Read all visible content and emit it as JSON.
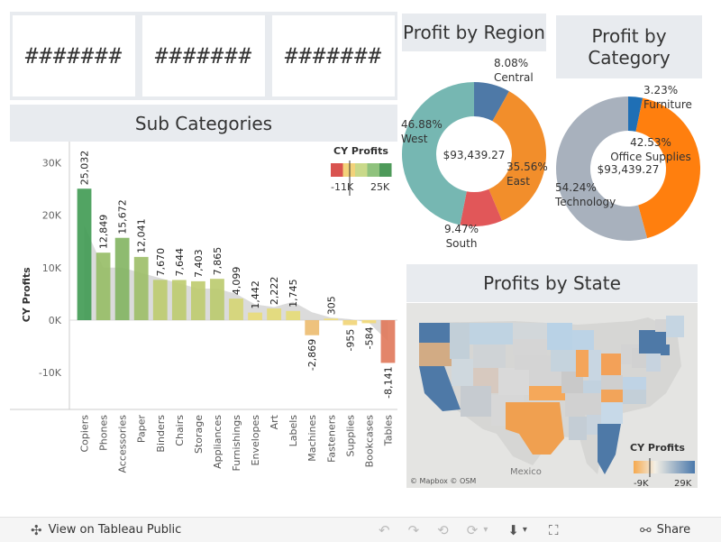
{
  "kpis": [
    "#######",
    "#######",
    "#######"
  ],
  "sub_categories": {
    "title": "Sub Categories",
    "legend": {
      "title": "CY Profits",
      "min": "-11K",
      "max": "25K"
    }
  },
  "profit_by_region": {
    "title": "Profit by Region",
    "center_total": "$93,439.27"
  },
  "profit_by_category": {
    "title": "Profit by Category",
    "center_total": "$93,439.27"
  },
  "profits_by_state": {
    "title": "Profits by State",
    "legend": {
      "title": "CY Profits",
      "min": "-9K",
      "max": "29K"
    },
    "map_labels": {
      "country": "Mexico",
      "attribution": "© Mapbox  © OSM"
    }
  },
  "chart_data": [
    {
      "type": "bar",
      "title": "Sub Categories",
      "ylabel": "CY Profits",
      "categories": [
        "Copiers",
        "Phones",
        "Accessories",
        "Paper",
        "Binders",
        "Chairs",
        "Storage",
        "Appliances",
        "Furnishings",
        "Envelopes",
        "Art",
        "Labels",
        "Machines",
        "Fasteners",
        "Supplies",
        "Bookcases",
        "Tables"
      ],
      "values": [
        25032,
        12849,
        15672,
        12041,
        7670,
        7644,
        7403,
        7865,
        4099,
        1442,
        2222,
        1745,
        -2869,
        305,
        -955,
        -584,
        -8141
      ],
      "value_labels": [
        "25,032",
        "12,849",
        "15,672",
        "12,041",
        "7,670",
        "7,644",
        "7,403",
        "7,865",
        "4,099",
        "1,442",
        "2,222",
        "1,745",
        "-2,869",
        "305",
        "-955",
        "-584",
        "-8,141"
      ],
      "reference_area": [
        18000,
        10000,
        10000,
        9000,
        8000,
        7000,
        6000,
        6000,
        5000,
        3000,
        2500,
        3500,
        1500,
        500,
        200,
        -500,
        -4000
      ],
      "yticks": [
        -10000,
        0,
        10000,
        20000,
        30000
      ],
      "ytick_labels": [
        "-10K",
        "0K",
        "10K",
        "20K",
        "30K"
      ],
      "ylim": [
        -17000,
        34000
      ]
    },
    {
      "type": "pie",
      "title": "Profit by Region",
      "labels": [
        "Central",
        "East",
        "South",
        "West"
      ],
      "values": [
        8.08,
        35.56,
        9.47,
        46.88
      ],
      "value_labels": [
        "8.08%",
        "35.56%",
        "9.47%",
        "46.88%"
      ],
      "colors": [
        "#4e79a7",
        "#f28e2b",
        "#e15759",
        "#76b7b2"
      ]
    },
    {
      "type": "pie",
      "title": "Profit by Category",
      "labels": [
        "Furniture",
        "Office Supplies",
        "Technology"
      ],
      "values": [
        3.23,
        42.53,
        54.24
      ],
      "value_labels": [
        "3.23%",
        "42.53%",
        "54.24%"
      ],
      "colors": [
        "#1f6fb5",
        "#ff7f0e",
        "#a8b1bd"
      ]
    }
  ],
  "toolbar": {
    "view_label": "View on Tableau Public",
    "share_label": "Share"
  }
}
